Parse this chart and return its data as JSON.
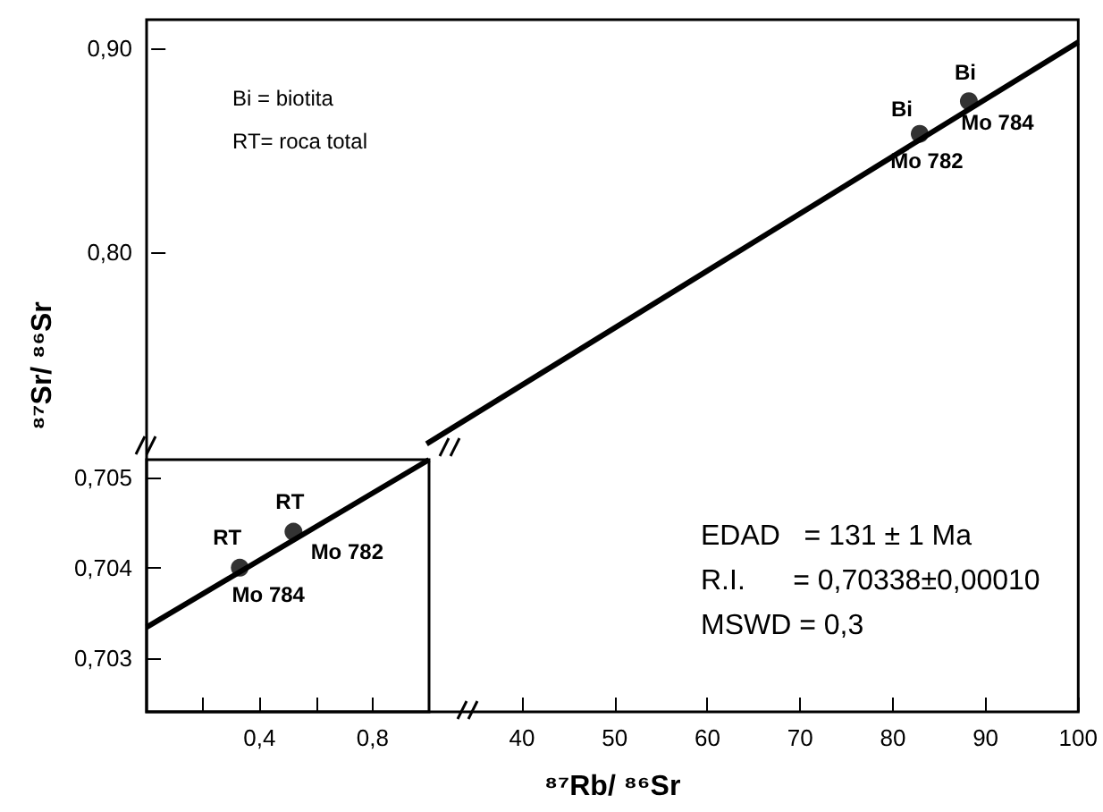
{
  "chart_data": [
    {
      "type": "scatter",
      "xlabel": "⁸⁷Rb/ ⁸⁶Sr",
      "ylabel": "⁸⁷Sr/ ⁸⁶Sr",
      "xlim": [
        -0.5,
        100
      ],
      "ylim": [
        0.5746,
        0.914
      ],
      "xticks": [
        40,
        50,
        60,
        70,
        80,
        90,
        100
      ],
      "yticks": [
        {
          "value": 0.8,
          "label": "0,80"
        },
        {
          "value": 0.9,
          "label": "0,90"
        }
      ],
      "marker": "circle",
      "series": [
        {
          "color": "#000000",
          "x": [
            82.9,
            88.2
          ],
          "values": [
            0.858,
            0.874
          ]
        },
        {
          "type": "line",
          "color": "#000000",
          "marker": "none",
          "x": [
            29.7,
            100
          ],
          "values": [
            0.706,
            0.903
          ]
        }
      ],
      "annotations": [
        "Bi = biotita",
        "RT= roca total",
        "EDAD   = 131 ± 1 Ma",
        "R.I.      = 0,70338±0,00010",
        "MSWD = 0,3",
        {
          "text": "Bi",
          "x": 82.9,
          "y": 0.858
        },
        {
          "text": "Mo 782",
          "x": 82.9,
          "y": 0.858
        },
        {
          "text": "Bi",
          "x": 88.2,
          "y": 0.874
        },
        {
          "text": "Mo 784",
          "x": 88.2,
          "y": 0.874
        }
      ]
    },
    {
      "type": "scatter",
      "xlim": [
        0,
        1.0
      ],
      "ylim": [
        0.7024,
        0.7052
      ],
      "xticks": [
        {
          "value": 0.2,
          "label": null
        },
        {
          "value": 0.4,
          "label": "0,4"
        },
        {
          "value": 0.6,
          "label": null
        },
        {
          "value": 0.8,
          "label": "0,8"
        }
      ],
      "yticks": [
        {
          "value": 0.703,
          "label": "0,703"
        },
        {
          "value": 0.704,
          "label": "0,704"
        },
        {
          "value": 0.705,
          "label": "0,705"
        }
      ],
      "marker": "circle",
      "series": [
        {
          "color": "#000000",
          "x": [
            0.33,
            0.52
          ],
          "values": [
            0.704,
            0.7044
          ]
        },
        {
          "type": "line",
          "color": "#000000",
          "marker": "none",
          "x": [
            0,
            1.0
          ],
          "values": [
            0.70334,
            0.7052
          ]
        }
      ],
      "annotations": [
        {
          "text": "RT",
          "x": 0.33,
          "y": 0.704
        },
        {
          "text": "Mo 784",
          "x": 0.33,
          "y": 0.704
        },
        {
          "text": "RT",
          "x": 0.52,
          "y": 0.7044
        },
        {
          "text": "Mo 782",
          "x": 0.52,
          "y": 0.7044
        }
      ]
    }
  ]
}
